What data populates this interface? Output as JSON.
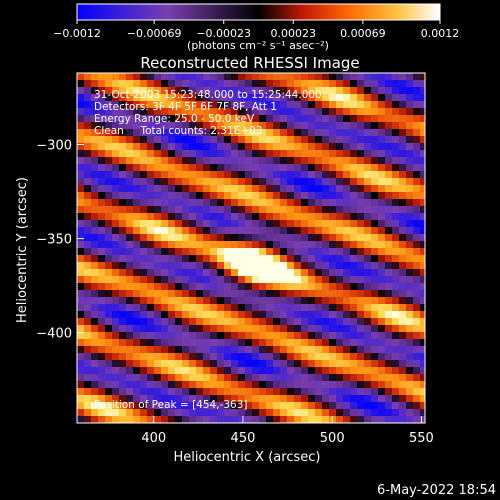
{
  "chart_data": {
    "type": "heatmap",
    "title": "Reconstructed RHESSI Image",
    "xlabel": "Heliocentric X (arcsec)",
    "ylabel": "Heliocentric Y (arcsec)",
    "xlim": [
      357,
      552
    ],
    "ylim": [
      -448,
      -262
    ],
    "x_ticks": [
      400,
      450,
      500,
      550
    ],
    "x_tick_labels": [
      "400",
      "450",
      "500",
      "550"
    ],
    "y_ticks": [
      -300,
      -350,
      -400
    ],
    "y_tick_labels": [
      "−300",
      "−350",
      "−400"
    ],
    "colorbar": {
      "range": [
        -0.0012,
        0.0012
      ],
      "ticks": [
        -0.0012,
        -0.00069,
        -0.00023,
        0.00023,
        0.00069,
        0.0012
      ],
      "tick_labels": [
        "−0.0012",
        "−0.00069",
        "−0.00023",
        "0.00023",
        "0.00069",
        "0.0012"
      ],
      "unit_label": "(photons cm⁻² s⁻¹ asec⁻²)"
    },
    "annotations": [
      "31-Oct-2003 15:23:48.000 to 15:25:44.000",
      "Detectors: 3F 4F 5F 6F 7F 8F, Att 1",
      "Energy Range: 25.0 - 50.0 keV",
      "Clean     Total counts: 2.31E+03"
    ],
    "peak_label": "Position of Peak = [454,-363]",
    "peak": {
      "x": 454,
      "y": -363
    },
    "pattern": "diagonal fringe bands descending to the right, bright peak near center",
    "colors": {
      "min": "#0000ff",
      "mid_low": "#7040a0",
      "mid": "#000000",
      "red": "#d02010",
      "orange": "#ff8000",
      "max": "#ffffe0"
    }
  },
  "footer": {
    "date": "6-May-2022 18:54"
  }
}
